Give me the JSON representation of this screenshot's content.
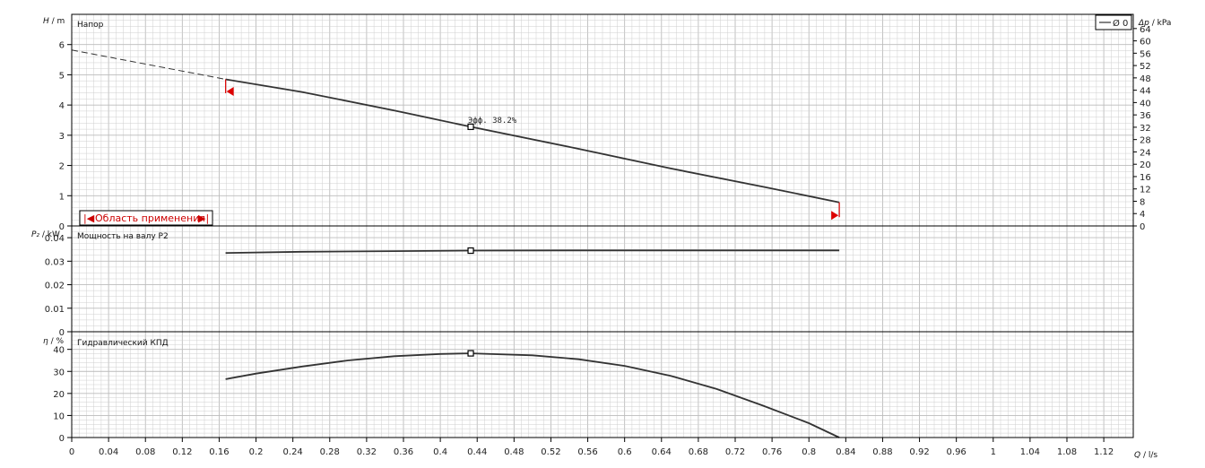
{
  "chart_data": [
    {
      "type": "line",
      "title": "Напор",
      "ylabel_sym": "H",
      "ylabel_unit": " / m",
      "y2label_sym": "Δp",
      "y2label_unit": " / kPa",
      "ylim": [
        0,
        7
      ],
      "yticks": [
        "0",
        "1",
        "2",
        "3",
        "4",
        "5",
        "6"
      ],
      "y2lim": [
        0,
        68.6
      ],
      "y2ticks": [
        "0",
        "4",
        "8",
        "12",
        "16",
        "20",
        "24",
        "28",
        "32",
        "36",
        "40",
        "44",
        "48",
        "52",
        "56",
        "60",
        "64"
      ],
      "legend": "Ø 0",
      "annotation": "Эфф. 38.2%",
      "application_label": "Область применения",
      "application_range": [
        0.167,
        0.833
      ],
      "extrapolated": {
        "x": [
          0.0,
          0.167
        ],
        "y": [
          5.82,
          4.85
        ]
      },
      "series": [
        {
          "x": [
            0.167,
            0.25,
            0.35,
            0.433,
            0.55,
            0.65,
            0.75,
            0.833
          ],
          "y": [
            4.85,
            4.43,
            3.82,
            3.28,
            2.55,
            1.9,
            1.3,
            0.78
          ]
        }
      ],
      "op_point": {
        "x": 0.433,
        "y": 3.28
      },
      "end_markers": [
        {
          "x": 0.167,
          "y": 4.45
        },
        {
          "x": 0.833,
          "y": 0.35
        }
      ]
    },
    {
      "type": "line",
      "title": "Мощность на валу P2",
      "ylabel_sym": "P₂",
      "ylabel_unit": " / kW",
      "ylim": [
        0,
        0.045
      ],
      "yticks": [
        "0",
        "0.01",
        "0.02",
        "0.03",
        "0.04"
      ],
      "series": [
        {
          "x": [
            0.167,
            0.25,
            0.35,
            0.433,
            0.55,
            0.65,
            0.75,
            0.833
          ],
          "y": [
            0.0335,
            0.034,
            0.0343,
            0.0345,
            0.0346,
            0.0346,
            0.0346,
            0.0346
          ]
        }
      ],
      "op_point": {
        "x": 0.433,
        "y": 0.0345
      }
    },
    {
      "type": "line",
      "title": "Гидравлический КПД",
      "ylabel_sym": "η",
      "ylabel_unit": " / %",
      "ylim": [
        0,
        48
      ],
      "yticks": [
        "0",
        "10",
        "20",
        "30",
        "40"
      ],
      "series": [
        {
          "x": [
            0.167,
            0.2,
            0.25,
            0.3,
            0.35,
            0.4,
            0.433,
            0.5,
            0.55,
            0.6,
            0.65,
            0.7,
            0.75,
            0.8,
            0.833
          ],
          "y": [
            26.5,
            29,
            32.2,
            35,
            36.9,
            37.9,
            38.2,
            37.3,
            35.5,
            32.5,
            28,
            22,
            14.5,
            6.5,
            0
          ]
        }
      ],
      "op_point": {
        "x": 0.433,
        "y": 38.2
      }
    }
  ],
  "x_axis": {
    "label_sym": "Q",
    "label_unit": " / l/s",
    "xlim": [
      0,
      1.152
    ],
    "ticks": [
      "0",
      "0.04",
      "0.08",
      "0.12",
      "0.16",
      "0.2",
      "0.24",
      "0.28",
      "0.32",
      "0.36",
      "0.4",
      "0.44",
      "0.48",
      "0.52",
      "0.56",
      "0.6",
      "0.64",
      "0.68",
      "0.72",
      "0.76",
      "0.8",
      "0.84",
      "0.88",
      "0.92",
      "0.96",
      "1",
      "1.04",
      "1.08",
      "1.12"
    ],
    "tick_values": [
      0,
      0.04,
      0.08,
      0.12,
      0.16,
      0.2,
      0.24,
      0.28,
      0.32,
      0.36,
      0.4,
      0.44,
      0.48,
      0.52,
      0.56,
      0.6,
      0.64,
      0.68,
      0.72,
      0.76,
      0.8,
      0.84,
      0.88,
      0.92,
      0.96,
      1,
      1.04,
      1.08,
      1.12
    ]
  },
  "colors": {
    "curve": "#333333",
    "grid": "#cfcfcf",
    "grid_major": "#bcbcbc",
    "marker": "#dd0000",
    "axis": "#000000"
  }
}
